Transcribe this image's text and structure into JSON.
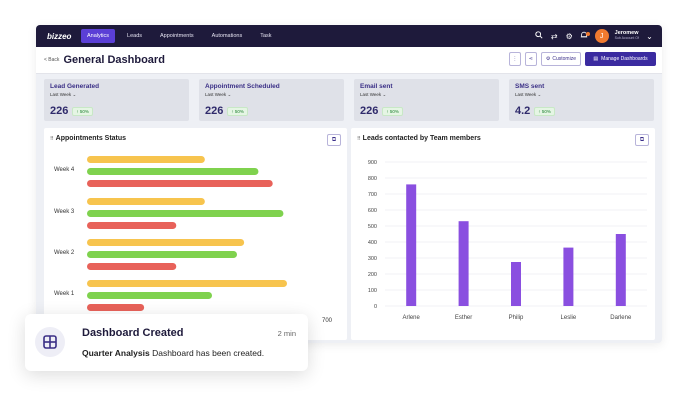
{
  "nav": {
    "logo": "bizzeo",
    "items": [
      "Analytics",
      "Leads",
      "Appointments",
      "Automations",
      "Task"
    ],
    "active": "Analytics",
    "user": {
      "initial": "J",
      "name": "Jeromew",
      "sub": "Sub Account Of"
    },
    "notification_count": "1"
  },
  "header": {
    "back_label": "< Back",
    "title": "General Dashboard",
    "customize_label": "Customize",
    "manage_label": "Manage Dashboards"
  },
  "stats": [
    {
      "title": "Lead Generated",
      "period": "Last Week",
      "value": "226",
      "change": "50%"
    },
    {
      "title": "Appointment Scheduled",
      "period": "Last Week",
      "value": "226",
      "change": "50%"
    },
    {
      "title": "Email sent",
      "period": "Last Week",
      "value": "226",
      "change": "50%"
    },
    {
      "title": "SMS sent",
      "period": "Last Week",
      "value": "4.2",
      "change": "50%"
    }
  ],
  "colors": {
    "accent": "#3b2ba0",
    "bar_purple": "#8a4fe0",
    "yellow": "#f7c44e",
    "green": "#7fd24e",
    "red": "#e8625a"
  },
  "chart_data": [
    {
      "type": "bar",
      "orientation": "horizontal",
      "title": "Appointments Status",
      "categories": [
        "Week 4",
        "Week 3",
        "Week 2",
        "Week 1"
      ],
      "series": [
        {
          "name": "yellow",
          "values": [
            330,
            330,
            440,
            560
          ]
        },
        {
          "name": "green",
          "values": [
            480,
            550,
            420,
            350
          ]
        },
        {
          "name": "red",
          "values": [
            520,
            250,
            250,
            160
          ]
        }
      ],
      "xlim": [
        0,
        700
      ],
      "x_tick_label": "700"
    },
    {
      "type": "bar",
      "title": "Leads contacted by Team members",
      "categories": [
        "Arlene",
        "Esther",
        "Philip",
        "Leslie",
        "Darlene"
      ],
      "values": [
        760,
        530,
        275,
        365,
        450
      ],
      "ylim": [
        0,
        900
      ],
      "yticks": [
        0,
        100,
        200,
        300,
        400,
        500,
        600,
        700,
        800,
        900
      ]
    }
  ],
  "toast": {
    "title": "Dashboard Created",
    "time": "2 min",
    "body_bold": "Quarter Analysis",
    "body_text": "Dashboard has been created."
  }
}
